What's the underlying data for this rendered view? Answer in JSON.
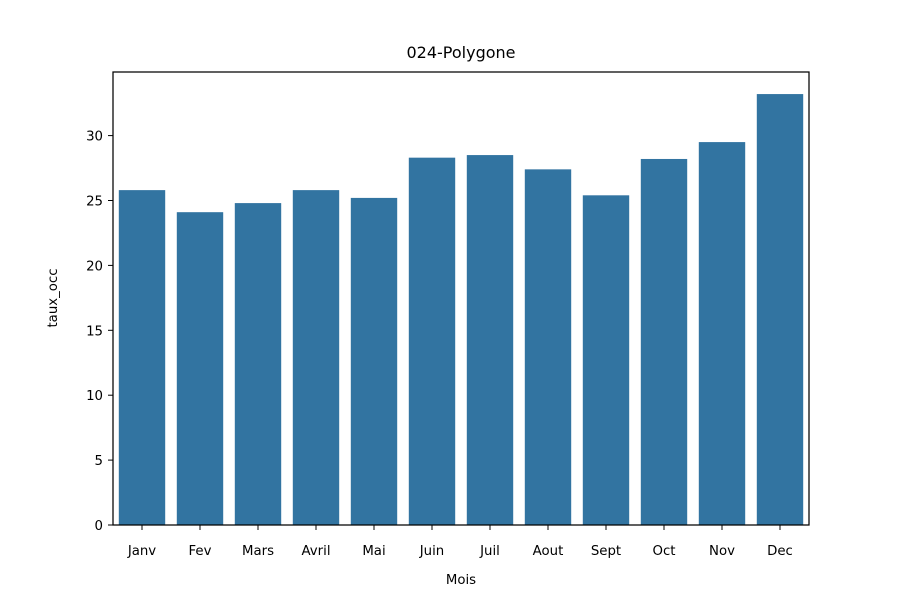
{
  "chart_data": {
    "type": "bar",
    "title": "024-Polygone",
    "xlabel": "Mois",
    "ylabel": "taux_occ",
    "categories": [
      "Janv",
      "Fev",
      "Mars",
      "Avril",
      "Mai",
      "Juin",
      "Juil",
      "Aout",
      "Sept",
      "Oct",
      "Nov",
      "Dec"
    ],
    "values": [
      25.8,
      24.1,
      24.8,
      25.8,
      25.2,
      28.3,
      28.5,
      27.4,
      25.4,
      28.2,
      29.5,
      33.2
    ],
    "ylim": [
      0,
      34.9
    ],
    "yticks": [
      0,
      5,
      10,
      15,
      20,
      25,
      30
    ],
    "bar_color": "#3274a1",
    "grid": false,
    "legend": false
  }
}
